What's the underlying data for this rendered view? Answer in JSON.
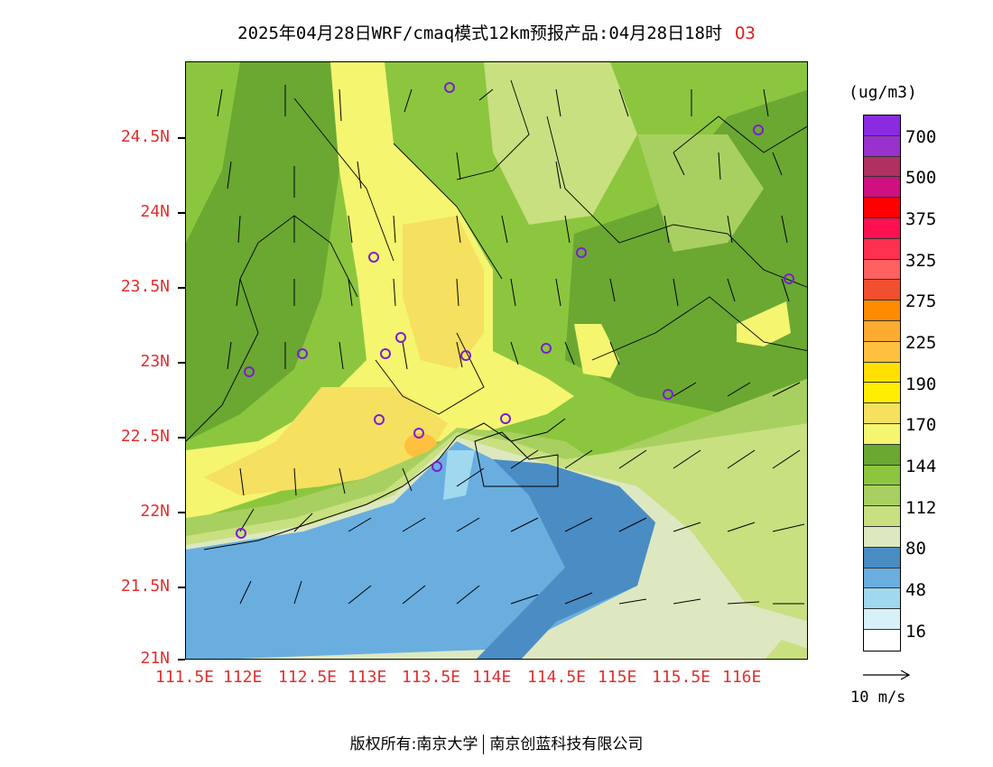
{
  "title": {
    "text": "2025年04月28日WRF/cmaq模式12km预报产品:04月28日18时",
    "species": "O3"
  },
  "axes": {
    "x_ticks": [
      "111.5E",
      "112E",
      "112.5E",
      "113E",
      "113.5E",
      "114E",
      "114.5E",
      "115E",
      "115.5E",
      "116E"
    ],
    "y_ticks": [
      "24.5N",
      "24N",
      "23.5N",
      "23N",
      "22.5N",
      "22N",
      "21.5N",
      "21N"
    ],
    "label_color": "#e03030"
  },
  "legend": {
    "unit": "(ug/m3)",
    "labels": [
      "700",
      "500",
      "375",
      "325",
      "275",
      "225",
      "190",
      "170",
      "144",
      "112",
      "80",
      "48",
      "16"
    ],
    "colors": [
      "#8a2be2",
      "#9932cc",
      "#b03060",
      "#d01080",
      "#ff0000",
      "#ff1050",
      "#ff3050",
      "#ff6060",
      "#f05030",
      "#ff8c00",
      "#ffaa30",
      "#ffc040",
      "#ffe000",
      "#ffee00",
      "#f5e060",
      "#f5f570",
      "#6aa832",
      "#8cc63f",
      "#a8d060",
      "#c8e080",
      "#dde8c0",
      "#4a8cc4",
      "#6aaee0",
      "#a0d8f0",
      "#d8f0f8",
      "#ffffff"
    ]
  },
  "reference_vector": {
    "label": "10 m/s"
  },
  "footer": {
    "left": "版权所有:南京大学",
    "right": "南京创蓝科技有限公司"
  },
  "monitoring_stations": {
    "icon": "circle-marker-icon",
    "color": "#7a1fd0"
  }
}
